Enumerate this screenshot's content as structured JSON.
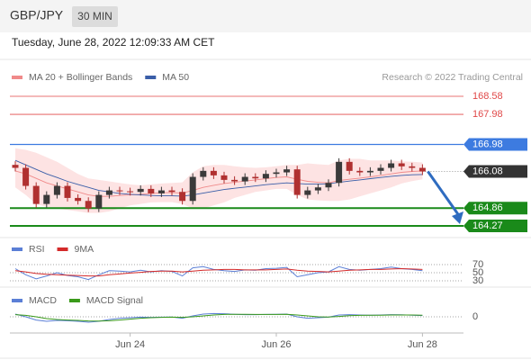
{
  "header": {
    "symbol": "GBP/JPY",
    "timeframe": "30 MIN",
    "timestamp": "Tuesday, June 28, 2022 12:09:33 AM CET",
    "copyright": "Research © 2022 Trading Central"
  },
  "chart_data": [
    {
      "type": "candlestick",
      "x": [
        null,
        null,
        null,
        null,
        null,
        null,
        null,
        null,
        null,
        null,
        null,
        "Jun 24",
        null,
        null,
        null,
        null,
        null,
        null,
        null,
        null,
        null,
        null,
        null,
        null,
        null,
        "Jun 26",
        null,
        null,
        null,
        null,
        null,
        null,
        null,
        null,
        null,
        null,
        null,
        null,
        null,
        "Jun 28"
      ],
      "open": [
        166.3,
        166.2,
        165.6,
        165.0,
        165.3,
        165.6,
        165.2,
        165.1,
        164.85,
        165.3,
        165.45,
        165.42,
        165.4,
        165.5,
        165.35,
        165.45,
        165.4,
        165.1,
        165.9,
        166.1,
        165.95,
        165.8,
        165.75,
        165.9,
        165.85,
        166.0,
        166.05,
        166.15,
        165.3,
        165.45,
        165.55,
        165.7,
        166.4,
        166.1,
        166.05,
        166.1,
        166.2,
        166.35,
        166.25,
        166.2
      ],
      "high": [
        166.42,
        166.32,
        165.72,
        165.42,
        165.72,
        165.72,
        165.32,
        165.22,
        165.42,
        165.57,
        165.57,
        165.54,
        165.62,
        165.62,
        165.57,
        165.57,
        165.52,
        166.02,
        166.22,
        166.22,
        166.07,
        165.92,
        166.02,
        166.02,
        166.12,
        166.17,
        166.27,
        166.27,
        165.57,
        165.67,
        165.82,
        166.52,
        166.52,
        166.22,
        166.22,
        166.32,
        166.47,
        166.47,
        166.37,
        166.32
      ],
      "low": [
        166.08,
        165.48,
        164.88,
        164.88,
        165.18,
        165.08,
        164.98,
        164.73,
        164.73,
        165.18,
        165.3,
        165.28,
        165.28,
        165.23,
        165.23,
        165.28,
        164.98,
        164.98,
        165.78,
        165.83,
        165.68,
        165.63,
        165.63,
        165.73,
        165.73,
        165.88,
        165.93,
        165.18,
        165.18,
        165.33,
        165.43,
        165.58,
        165.98,
        165.93,
        165.93,
        165.98,
        166.08,
        166.13,
        166.08,
        165.96
      ],
      "close": [
        166.2,
        165.6,
        165.0,
        165.3,
        165.6,
        165.2,
        165.1,
        164.85,
        165.3,
        165.45,
        165.42,
        165.4,
        165.5,
        165.35,
        165.45,
        165.4,
        165.1,
        165.9,
        166.1,
        165.95,
        165.8,
        165.75,
        165.9,
        165.85,
        166.0,
        166.05,
        166.15,
        165.3,
        165.45,
        165.55,
        165.7,
        166.4,
        166.1,
        166.05,
        166.1,
        166.2,
        166.35,
        166.25,
        166.2,
        166.08
      ],
      "up_color": "#3a3a3a",
      "down_color": "#b03030",
      "band_color": "#fde3e3",
      "series": [
        {
          "name": "MA 20 + Bollinger Bands",
          "color": "#f08a8a",
          "values": [
            166.1,
            166.0,
            165.85,
            165.7,
            165.6,
            165.5,
            165.4,
            165.3,
            165.25,
            165.25,
            165.28,
            165.3,
            165.32,
            165.35,
            165.37,
            165.38,
            165.36,
            165.45,
            165.55,
            165.62,
            165.68,
            165.72,
            165.76,
            165.8,
            165.84,
            165.88,
            165.9,
            165.82,
            165.75,
            165.72,
            165.7,
            165.78,
            165.82,
            165.86,
            165.9,
            165.95,
            166.0,
            166.05,
            166.08,
            166.1
          ],
          "upper": [
            166.85,
            166.8,
            166.7,
            166.55,
            166.4,
            166.2,
            166.0,
            165.85,
            165.8,
            165.75,
            165.7,
            165.65,
            165.62,
            165.65,
            165.68,
            165.7,
            165.72,
            166.05,
            166.25,
            166.3,
            166.3,
            166.25,
            166.22,
            166.2,
            166.22,
            166.25,
            166.3,
            166.3,
            166.35,
            166.32,
            166.3,
            166.45,
            166.5,
            166.5,
            166.45,
            166.45,
            166.45,
            166.42,
            166.4,
            166.38
          ],
          "lower": [
            165.55,
            165.3,
            165.0,
            164.9,
            164.85,
            164.8,
            164.75,
            164.7,
            164.7,
            164.75,
            164.85,
            164.95,
            165.0,
            165.05,
            165.06,
            165.06,
            165.0,
            164.85,
            164.85,
            164.95,
            165.05,
            165.2,
            165.3,
            165.4,
            165.45,
            165.5,
            165.5,
            165.3,
            165.15,
            165.12,
            165.1,
            165.1,
            165.15,
            165.25,
            165.35,
            165.45,
            165.55,
            165.68,
            165.76,
            165.82
          ]
        },
        {
          "name": "MA 50",
          "color": "#3a5ea8",
          "values": [
            166.45,
            166.3,
            166.15,
            166.0,
            165.88,
            165.75,
            165.65,
            165.55,
            165.45,
            165.4,
            165.35,
            165.32,
            165.3,
            165.28,
            165.27,
            165.27,
            165.26,
            165.3,
            165.36,
            165.42,
            165.48,
            165.52,
            165.56,
            165.6,
            165.64,
            165.67,
            165.7,
            165.68,
            165.66,
            165.66,
            165.67,
            165.72,
            165.76,
            165.8,
            165.84,
            165.88,
            165.92,
            165.95,
            165.97,
            165.98
          ]
        }
      ],
      "ylim": [
        164.0,
        168.94
      ],
      "resistance_levels": [
        168.58,
        167.98
      ],
      "resistance_color": "#e04848",
      "pivot": 166.98,
      "pivot_color": "#3d7be0",
      "last": 166.08,
      "last_color": "#333333",
      "support_levels": [
        164.86,
        164.27
      ],
      "support_color": "#1a8a1a",
      "arrow_color": "#2f6cc0"
    },
    {
      "type": "line",
      "series": [
        {
          "name": "RSI",
          "color": "#5b7fd6",
          "values": [
            60,
            45,
            35,
            42,
            50,
            43,
            40,
            33,
            45,
            55,
            54,
            52,
            56,
            52,
            55,
            53,
            42,
            62,
            65,
            58,
            55,
            53,
            57,
            56,
            60,
            61,
            63,
            40,
            45,
            50,
            52,
            65,
            58,
            56,
            58,
            60,
            64,
            60,
            58,
            55
          ]
        },
        {
          "name": "9MA",
          "color": "#d42a2a",
          "values": [
            55,
            52,
            48,
            46,
            45,
            44,
            43,
            42,
            42,
            45,
            47,
            49,
            51,
            53,
            54,
            54,
            52,
            54,
            56,
            57,
            58,
            58,
            57,
            57,
            57,
            58,
            59,
            56,
            54,
            53,
            52,
            54,
            56,
            57,
            58,
            58,
            59,
            60,
            59,
            58
          ]
        }
      ],
      "ylim": [
        30,
        70
      ],
      "yticks": [
        30,
        50,
        70
      ],
      "grid": true
    },
    {
      "type": "line",
      "series": [
        {
          "name": "MACD",
          "color": "#5b7fd6",
          "values": [
            0.15,
            0.0,
            -0.18,
            -0.25,
            -0.2,
            -0.22,
            -0.25,
            -0.3,
            -0.25,
            -0.15,
            -0.08,
            -0.05,
            -0.02,
            -0.03,
            -0.02,
            -0.01,
            -0.08,
            0.05,
            0.15,
            0.18,
            0.17,
            0.14,
            0.12,
            0.12,
            0.13,
            0.14,
            0.15,
            0.0,
            -0.08,
            -0.05,
            -0.02,
            0.1,
            0.12,
            0.1,
            0.09,
            0.1,
            0.12,
            0.11,
            0.09,
            0.07
          ]
        },
        {
          "name": "MACD Signal",
          "color": "#3a9a1a",
          "values": [
            0.12,
            0.08,
            0.0,
            -0.1,
            -0.15,
            -0.18,
            -0.2,
            -0.23,
            -0.24,
            -0.22,
            -0.18,
            -0.13,
            -0.08,
            -0.05,
            -0.03,
            -0.02,
            -0.03,
            0.0,
            0.05,
            0.1,
            0.13,
            0.14,
            0.14,
            0.13,
            0.13,
            0.13,
            0.14,
            0.1,
            0.05,
            0.0,
            -0.01,
            0.02,
            0.06,
            0.08,
            0.09,
            0.09,
            0.1,
            0.1,
            0.1,
            0.09
          ]
        }
      ],
      "ylim": [
        -0.6,
        0.6
      ],
      "yticks": [
        0
      ],
      "grid": true
    }
  ]
}
